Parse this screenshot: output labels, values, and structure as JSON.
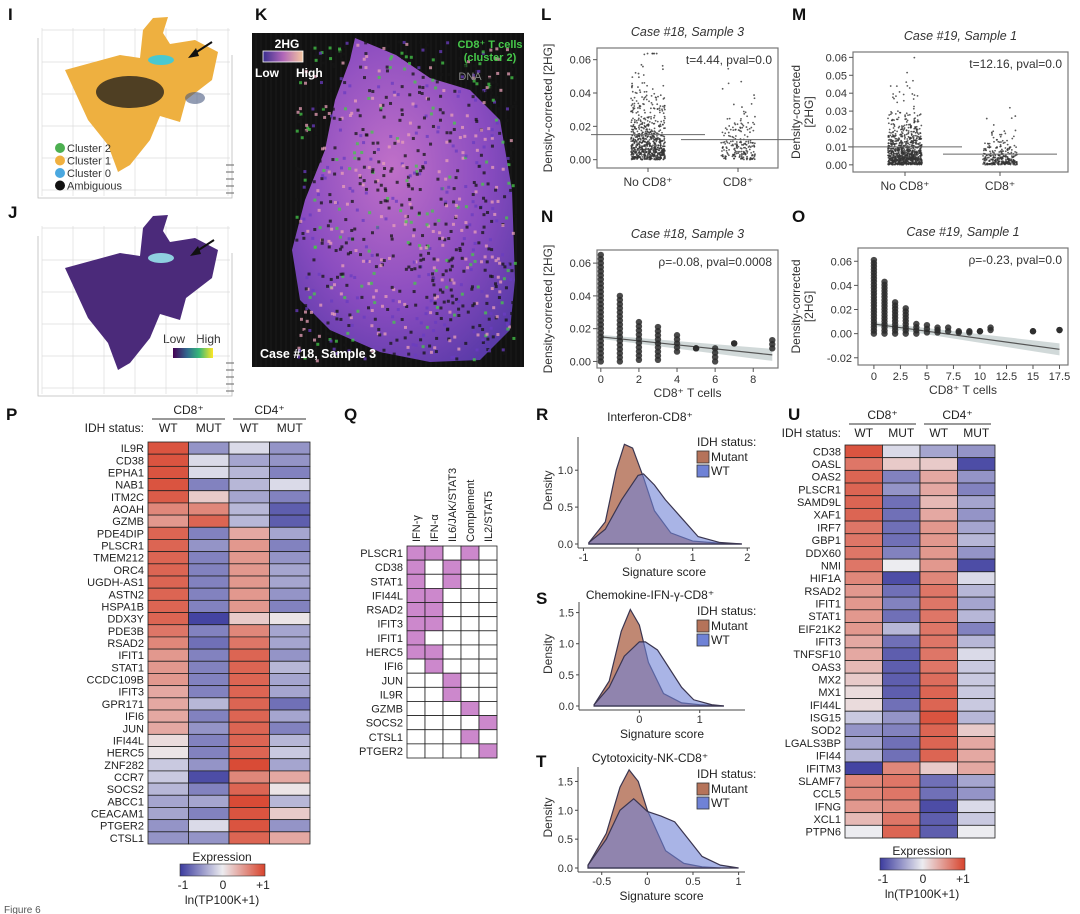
{
  "figure_caption": "Figure 6",
  "watermark": "知乎 @搞科研的大师兄",
  "labels": [
    "I",
    "J",
    "K",
    "L",
    "M",
    "N",
    "O",
    "P",
    "Q",
    "R",
    "S",
    "T",
    "U"
  ],
  "panel_I": {
    "legend": [
      {
        "label": "Cluster 2",
        "color": "#4caf50"
      },
      {
        "label": "Cluster 1",
        "color": "#f0b040"
      },
      {
        "label": "Cluster 0",
        "color": "#4aa8e0"
      },
      {
        "label": "Ambiguous",
        "color": "#111111"
      }
    ],
    "arrow": "arrow-icon"
  },
  "panel_J": {
    "colorbar_low": "Low",
    "colorbar_high": "High",
    "fill_color": "#4b2a7a"
  },
  "panel_K": {
    "colorbar_title": "2HG",
    "low": "Low",
    "high": "High",
    "cd8_label": "CD8⁺ T cells",
    "cd8_sublabel": "(cluster 2)",
    "dna_label": "DNA",
    "sample_label": "Case #18, Sample 3",
    "colors": {
      "cd8": "#46c84a",
      "low": "#3a2f8f",
      "high": "#f5c7a0",
      "background": "#111111"
    }
  },
  "chart_data": [
    {
      "type": "scatter",
      "title": "Case #18, Sample 3",
      "ylabel": "Density-corrected [2HG]",
      "categories": [
        "No CD8⁺",
        "CD8⁺"
      ],
      "group_means": [
        0.015,
        0.012
      ],
      "yticks": [
        "0.00",
        "0.02",
        "0.04",
        "0.06"
      ],
      "ytick_values": [
        0,
        0.02,
        0.04,
        0.06
      ],
      "ylim": [
        -0.005,
        0.067
      ],
      "annotation": "t=4.44, pval=0.0"
    },
    {
      "type": "scatter",
      "title": "Case #19, Sample 1",
      "ylabel": [
        "Density-corrected",
        "[2HG]"
      ],
      "categories": [
        "No CD8⁺",
        "CD8⁺"
      ],
      "group_means": [
        0.01,
        0.006
      ],
      "yticks": [
        "0.00",
        "0.01",
        "0.02",
        "0.03",
        "0.04",
        "0.05",
        "0.06"
      ],
      "ytick_values": [
        0,
        0.01,
        0.02,
        0.03,
        0.04,
        0.05,
        0.06
      ],
      "ylim": [
        -0.004,
        0.063
      ],
      "annotation": "t=12.16, pval=0.0"
    },
    {
      "type": "scatter",
      "title": "Case #18, Sample 3",
      "ylabel": "Density-corrected [2HG]",
      "xlabel": "CD8⁺ T cells",
      "x": [
        0,
        1,
        2,
        3,
        4,
        5,
        6,
        7,
        9
      ],
      "y_max": [
        0.065,
        0.04,
        0.024,
        0.021,
        0.016,
        0.008,
        0.008,
        0.011,
        0.013
      ],
      "y_min": [
        0.0,
        0.0,
        0.001,
        0.001,
        0.006,
        0.008,
        0.0,
        0.011,
        0.008
      ],
      "fit_line": {
        "x": [
          0,
          9
        ],
        "y": [
          0.015,
          0.004
        ]
      },
      "xticks": [
        "0",
        "2",
        "4",
        "6",
        "8"
      ],
      "xtick_values": [
        0,
        2,
        4,
        6,
        8
      ],
      "yticks": [
        "0.00",
        "0.02",
        "0.04",
        "0.06"
      ],
      "ytick_values": [
        0,
        0.02,
        0.04,
        0.06
      ],
      "xlim": [
        -0.2,
        9.3
      ],
      "ylim": [
        -0.004,
        0.068
      ],
      "annotation": "ρ=-0.08, pval=0.0008"
    },
    {
      "type": "scatter",
      "title": "Case #19, Sample 1",
      "ylabel": [
        "Density-corrected",
        "[2HG]"
      ],
      "xlabel": "CD8⁺ T cells",
      "x": [
        0,
        1,
        2,
        3,
        4,
        5,
        6,
        7,
        8,
        9,
        10,
        11,
        15,
        17.5
      ],
      "y_max": [
        0.061,
        0.043,
        0.026,
        0.021,
        0.008,
        0.007,
        0.005,
        0.005,
        0.002,
        0.002,
        0.002,
        0.005,
        0.002,
        0.003
      ],
      "y_min": [
        0.0,
        0.0,
        0.0,
        0.0,
        0.0,
        0.001,
        0.001,
        0.002,
        0.001,
        0.001,
        0.002,
        0.003,
        0.002,
        0.003
      ],
      "fit_line": {
        "x": [
          0,
          17.5
        ],
        "y": [
          0.008,
          -0.013
        ]
      },
      "xticks": [
        "0",
        "2.5",
        "5",
        "7.5",
        "10",
        "12.5",
        "15",
        "17.5"
      ],
      "xtick_values": [
        0,
        2.5,
        5,
        7.5,
        10,
        12.5,
        15,
        17.5
      ],
      "yticks": [
        "-0.02",
        "0.00",
        "0.02",
        "0.04",
        "0.06"
      ],
      "ytick_values": [
        -0.02,
        0,
        0.02,
        0.04,
        0.06
      ],
      "xlim": [
        -1.5,
        18.3
      ],
      "ylim": [
        -0.026,
        0.071
      ],
      "annotation": "ρ=-0.23, pval=0.0"
    },
    {
      "type": "heatmap",
      "group_headers": [
        "CD8⁺",
        "CD4⁺"
      ],
      "row_header_label": "IDH status:",
      "columns": [
        "WT",
        "MUT",
        "WT",
        "MUT"
      ],
      "rows": [
        "IL9R",
        "CD38",
        "EPHA1",
        "NAB1",
        "ITM2C",
        "AOAH",
        "GZMB",
        "PDE4DIP",
        "PLSCR1",
        "TMEM212",
        "ORC4",
        "UGDH-AS1",
        "ASTN2",
        "HSPA1B",
        "DDX3Y",
        "PDE3B",
        "RSAD2",
        "IFIT1",
        "STAT1",
        "CCDC109B",
        "IFIT3",
        "GPR171",
        "IFI6",
        "JUN",
        "IFI44L",
        "HERC5",
        "ZNF282",
        "CCR7",
        "SOCS2",
        "ABCC1",
        "CEACAM1",
        "PTGER2",
        "CTSL1"
      ],
      "values": [
        [
          0.9,
          -0.5,
          -0.1,
          -0.5
        ],
        [
          0.9,
          -0.1,
          -0.4,
          -0.5
        ],
        [
          0.9,
          -0.1,
          -0.3,
          -0.6
        ],
        [
          0.9,
          -0.6,
          -0.3,
          -0.1
        ],
        [
          0.85,
          0.2,
          -0.4,
          -0.6
        ],
        [
          0.6,
          0.6,
          -0.3,
          -0.8
        ],
        [
          0.5,
          0.8,
          -0.3,
          -0.8
        ],
        [
          0.8,
          -0.6,
          0.4,
          -0.4
        ],
        [
          0.8,
          -0.5,
          0.5,
          -0.6
        ],
        [
          0.8,
          -0.6,
          0.5,
          -0.5
        ],
        [
          0.8,
          -0.6,
          0.5,
          -0.4
        ],
        [
          0.8,
          -0.6,
          0.5,
          -0.4
        ],
        [
          0.8,
          -0.6,
          0.5,
          -0.5
        ],
        [
          0.8,
          -0.6,
          0.5,
          -0.6
        ],
        [
          0.8,
          -0.95,
          0.2,
          0.05
        ],
        [
          0.7,
          -0.6,
          0.6,
          -0.4
        ],
        [
          0.6,
          -0.7,
          0.7,
          -0.4
        ],
        [
          0.5,
          -0.6,
          0.8,
          -0.5
        ],
        [
          0.5,
          -0.6,
          0.8,
          -0.3
        ],
        [
          0.5,
          -0.6,
          0.8,
          -0.4
        ],
        [
          0.4,
          -0.6,
          0.8,
          -0.4
        ],
        [
          0.4,
          -0.3,
          0.8,
          -0.7
        ],
        [
          0.4,
          -0.6,
          0.8,
          -0.4
        ],
        [
          0.4,
          -0.5,
          0.8,
          -0.6
        ],
        [
          0.1,
          -0.6,
          0.8,
          -0.3
        ],
        [
          0.05,
          -0.6,
          0.8,
          -0.2
        ],
        [
          -0.2,
          -0.5,
          0.95,
          -0.4
        ],
        [
          -0.2,
          -0.9,
          0.6,
          0.4
        ],
        [
          -0.3,
          -0.6,
          0.8,
          0.05
        ],
        [
          -0.4,
          -0.4,
          0.95,
          -0.3
        ],
        [
          -0.4,
          -0.6,
          0.9,
          0.2
        ],
        [
          -0.5,
          -0.1,
          0.9,
          -0.5
        ],
        [
          -0.5,
          -0.5,
          0.8,
          0.4
        ]
      ],
      "range": [
        -1,
        1
      ],
      "colorbar": {
        "title": "Expression",
        "ticks": [
          "-1",
          "0",
          "+1"
        ],
        "unit": "ln(TP100K+1)"
      },
      "colors": {
        "low": "#3b3b9e",
        "mid": "#ececf0",
        "high": "#d8432c"
      }
    },
    {
      "type": "heatmap",
      "columns": [
        "IFN-γ",
        "IFN-α",
        "IL6/JAK/STAT3",
        "Complement",
        "IL2/STAT5"
      ],
      "rows": [
        "PLSCR1",
        "CD38",
        "STAT1",
        "IFI44L",
        "RSAD2",
        "IFIT3",
        "IFIT1",
        "HERC5",
        "IFI6",
        "JUN",
        "IL9R",
        "GZMB",
        "SOCS2",
        "CTSL1",
        "PTGER2"
      ],
      "values": [
        [
          1,
          1,
          0,
          1,
          0
        ],
        [
          1,
          0,
          1,
          0,
          0
        ],
        [
          1,
          0,
          1,
          0,
          0
        ],
        [
          1,
          1,
          0,
          0,
          0
        ],
        [
          1,
          1,
          0,
          0,
          0
        ],
        [
          1,
          1,
          0,
          0,
          0
        ],
        [
          1,
          0,
          0,
          0,
          0
        ],
        [
          1,
          1,
          0,
          0,
          0
        ],
        [
          0,
          1,
          0,
          0,
          0
        ],
        [
          0,
          0,
          1,
          0,
          0
        ],
        [
          0,
          0,
          1,
          0,
          0
        ],
        [
          0,
          0,
          0,
          1,
          0
        ],
        [
          0,
          0,
          0,
          0,
          1
        ],
        [
          0,
          0,
          0,
          1,
          0
        ],
        [
          0,
          0,
          0,
          0,
          1
        ]
      ],
      "colors": {
        "member": "#cc88cc",
        "nonmember": "#ffffff"
      }
    },
    {
      "type": "area",
      "title": "Interferon-CD8⁺",
      "xlabel": "Signature score",
      "ylabel": "Density",
      "legend_title": "IDH status:",
      "legend_placement": "top-right",
      "series": [
        {
          "name": "Mutant",
          "color": "#b5735a",
          "x": [
            -0.9,
            -0.6,
            -0.4,
            -0.25,
            -0.1,
            0.1,
            0.3,
            0.6,
            1.0,
            1.5,
            1.9
          ],
          "y": [
            0.02,
            0.3,
            1.0,
            1.35,
            1.3,
            0.9,
            0.45,
            0.15,
            0.04,
            0.01,
            0
          ]
        },
        {
          "name": "WT",
          "color": "#6f82d6",
          "x": [
            -0.9,
            -0.6,
            -0.3,
            0,
            0.1,
            0.3,
            0.5,
            0.8,
            1.1,
            1.5,
            1.9
          ],
          "y": [
            0.02,
            0.2,
            0.6,
            0.93,
            0.95,
            0.8,
            0.6,
            0.35,
            0.1,
            0.02,
            0
          ]
        }
      ],
      "xticks": [
        "-1",
        "0",
        "1",
        "2"
      ],
      "xtick_values": [
        -1,
        0,
        1,
        2
      ],
      "yticks": [
        "0.0",
        "0.5",
        "1.0"
      ],
      "ytick_values": [
        0,
        0.5,
        1.0
      ],
      "xlim": [
        -1.1,
        2.05
      ],
      "ylim": [
        0,
        1.45
      ]
    },
    {
      "type": "area",
      "title": "Chemokine-IFN-γ-CD8⁺",
      "xlabel": "Signature score",
      "ylabel": "Density",
      "legend_title": "IDH status:",
      "legend_placement": "top-right",
      "series": [
        {
          "name": "Mutant",
          "color": "#b5735a",
          "x": [
            -0.75,
            -0.5,
            -0.3,
            -0.15,
            0,
            0.15,
            0.4,
            0.7,
            1.0,
            1.4
          ],
          "y": [
            0.02,
            0.4,
            1.2,
            1.55,
            1.3,
            0.7,
            0.2,
            0.05,
            0.02,
            0
          ]
        },
        {
          "name": "WT",
          "color": "#6f82d6",
          "x": [
            -0.75,
            -0.5,
            -0.25,
            0,
            0.1,
            0.3,
            0.5,
            0.7,
            0.9,
            1.2,
            1.4
          ],
          "y": [
            0.02,
            0.3,
            0.8,
            1.03,
            1.03,
            0.9,
            0.6,
            0.3,
            0.1,
            0.02,
            0
          ]
        }
      ],
      "xticks": [
        "0",
        "1"
      ],
      "xtick_values": [
        0,
        1
      ],
      "yticks": [
        "0.0",
        "0.5",
        "1.0",
        "1.5"
      ],
      "ytick_values": [
        0,
        0.5,
        1.0,
        1.5
      ],
      "xlim": [
        -1.0,
        1.75
      ],
      "ylim": [
        0,
        1.67
      ]
    },
    {
      "type": "area",
      "title": "Cytotoxicity-NK-CD8⁺",
      "xlabel": "Signature score",
      "ylabel": "Density",
      "legend_title": "IDH status:",
      "legend_placement": "top-right",
      "series": [
        {
          "name": "Mutant",
          "color": "#b5735a",
          "x": [
            -0.65,
            -0.45,
            -0.3,
            -0.2,
            -0.1,
            0,
            0.2,
            0.4,
            0.6,
            0.8
          ],
          "y": [
            0.05,
            0.6,
            1.4,
            1.7,
            1.5,
            1.0,
            0.3,
            0.08,
            0.02,
            0
          ]
        },
        {
          "name": "WT",
          "color": "#6f82d6",
          "x": [
            -0.65,
            -0.45,
            -0.3,
            -0.15,
            0,
            0.15,
            0.3,
            0.45,
            0.6,
            0.8,
            1.0
          ],
          "y": [
            0.05,
            0.5,
            1.0,
            1.2,
            0.98,
            0.9,
            0.8,
            0.5,
            0.2,
            0.05,
            0
          ]
        }
      ],
      "xticks": [
        "-0.5",
        "0",
        "0.5",
        "1"
      ],
      "xtick_values": [
        -0.5,
        0,
        0.5,
        1
      ],
      "yticks": [
        "0.0",
        "0.5",
        "1.0",
        "1.5"
      ],
      "ytick_values": [
        0,
        0.5,
        1.0,
        1.5
      ],
      "xlim": [
        -0.76,
        1.07
      ],
      "ylim": [
        0,
        1.75
      ]
    },
    {
      "type": "heatmap",
      "group_headers": [
        "CD8⁺",
        "CD4⁺"
      ],
      "row_header_label": "IDH status:",
      "columns": [
        "WT",
        "MUT",
        "WT",
        "MUT"
      ],
      "rows": [
        "CD38",
        "OASL",
        "OAS2",
        "PLSCR1",
        "SAMD9L",
        "XAF1",
        "IRF7",
        "GBP1",
        "DDX60",
        "NMI",
        "HIF1A",
        "RSAD2",
        "IFIT1",
        "STAT1",
        "EIF21K2",
        "IFIT3",
        "TNFSF10",
        "OAS3",
        "MX2",
        "MX1",
        "IFI44L",
        "ISG15",
        "SOD2",
        "LGALS3BP",
        "IFI44",
        "IFITM3",
        "SLAMF7",
        "CCL5",
        "IFNG",
        "XCL1",
        "PTPN6"
      ],
      "values": [
        [
          0.9,
          -0.1,
          -0.4,
          -0.5
        ],
        [
          0.7,
          0.2,
          0.2,
          -0.9
        ],
        [
          0.8,
          -0.6,
          0.4,
          -0.5
        ],
        [
          0.8,
          -0.5,
          0.4,
          -0.6
        ],
        [
          0.8,
          -0.7,
          0.3,
          -0.4
        ],
        [
          0.8,
          -0.7,
          0.4,
          -0.5
        ],
        [
          0.7,
          -0.7,
          0.5,
          -0.4
        ],
        [
          0.7,
          -0.7,
          0.5,
          -0.3
        ],
        [
          0.7,
          -0.6,
          0.5,
          -0.5
        ],
        [
          0.7,
          0.0,
          0.5,
          -0.9
        ],
        [
          0.6,
          -0.9,
          0.6,
          -0.1
        ],
        [
          0.5,
          -0.7,
          0.7,
          -0.3
        ],
        [
          0.5,
          -0.6,
          0.7,
          -0.4
        ],
        [
          0.5,
          -0.7,
          0.7,
          -0.3
        ],
        [
          0.5,
          -0.3,
          0.7,
          -0.6
        ],
        [
          0.4,
          -0.7,
          0.7,
          -0.3
        ],
        [
          0.4,
          -0.8,
          0.7,
          -0.1
        ],
        [
          0.3,
          -0.8,
          0.7,
          -0.2
        ],
        [
          0.2,
          -0.8,
          0.75,
          -0.2
        ],
        [
          0.1,
          -0.8,
          0.8,
          -0.2
        ],
        [
          0.1,
          -0.7,
          0.8,
          -0.2
        ],
        [
          -0.2,
          -0.5,
          0.9,
          -0.3
        ],
        [
          -0.5,
          -0.6,
          0.8,
          0.2
        ],
        [
          -0.4,
          -0.7,
          0.8,
          0.4
        ],
        [
          -0.3,
          -0.7,
          0.8,
          0.4
        ],
        [
          -0.95,
          0.6,
          0.2,
          0.4
        ],
        [
          0.6,
          0.7,
          -0.7,
          -0.4
        ],
        [
          0.6,
          0.7,
          -0.7,
          -0.5
        ],
        [
          0.5,
          0.6,
          -0.9,
          -0.1
        ],
        [
          0.3,
          0.7,
          -0.8,
          -0.2
        ],
        [
          0.0,
          0.8,
          -0.8,
          0.0
        ]
      ],
      "range": [
        -1,
        1
      ],
      "colorbar": {
        "title": "Expression",
        "ticks": [
          "-1",
          "0",
          "+1"
        ],
        "unit": "ln(TP100K+1)"
      },
      "colors": {
        "low": "#3b3b9e",
        "mid": "#ececf0",
        "high": "#d8432c"
      }
    }
  ]
}
